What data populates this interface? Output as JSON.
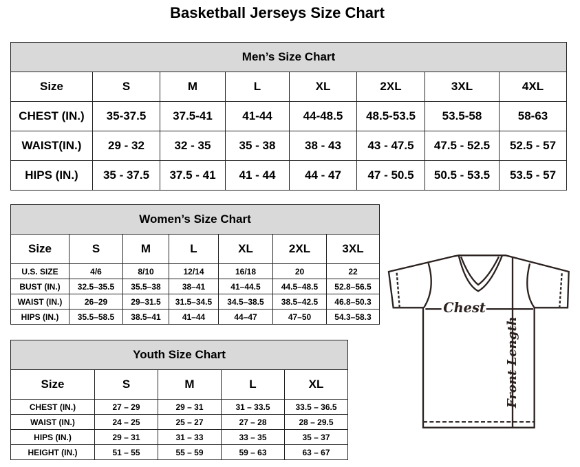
{
  "title": "Basketball Jerseys Size Chart",
  "men": {
    "caption": "Men’s Size Chart",
    "headers": [
      "Size",
      "S",
      "M",
      "L",
      "XL",
      "2XL",
      "3XL",
      "4XL"
    ],
    "rows": [
      [
        "CHEST (IN.)",
        "35-37.5",
        "37.5-41",
        "41-44",
        "44-48.5",
        "48.5-53.5",
        "53.5-58",
        "58-63"
      ],
      [
        "WAIST(IN.)",
        "29 - 32",
        "32 - 35",
        "35 - 38",
        "38 - 43",
        "43 - 47.5",
        "47.5 - 52.5",
        "52.5 - 57"
      ],
      [
        "HIPS (IN.)",
        "35 - 37.5",
        "37.5 - 41",
        "41 - 44",
        "44 - 47",
        "47 - 50.5",
        "50.5 - 53.5",
        "53.5 - 57"
      ]
    ]
  },
  "women": {
    "caption": "Women’s Size Chart",
    "headers": [
      "Size",
      "S",
      "M",
      "L",
      "XL",
      "2XL",
      "3XL"
    ],
    "rows": [
      [
        "U.S. SIZE",
        "4/6",
        "8/10",
        "12/14",
        "16/18",
        "20",
        "22"
      ],
      [
        "BUST (IN.)",
        "32.5–35.5",
        "35.5–38",
        "38–41",
        "41–44.5",
        "44.5–48.5",
        "52.8–56.5"
      ],
      [
        "WAIST (IN.)",
        "26–29",
        "29–31.5",
        "31.5–34.5",
        "34.5–38.5",
        "38.5–42.5",
        "46.8–50.3"
      ],
      [
        "HIPS (IN.)",
        "35.5–58.5",
        "38.5–41",
        "41–44",
        "44–47",
        "47–50",
        "54.3–58.3"
      ]
    ]
  },
  "youth": {
    "caption": "Youth Size Chart",
    "headers": [
      "Size",
      "S",
      "M",
      "L",
      "XL"
    ],
    "rows": [
      [
        "CHEST (IN.)",
        "27 – 29",
        "29 – 31",
        "31 – 33.5",
        "33.5 – 36.5"
      ],
      [
        "WAIST (IN.)",
        "24 – 25",
        "25 – 27",
        "27 – 28",
        "28 – 29.5"
      ],
      [
        "HIPS (IN.)",
        "29 – 31",
        "31 – 33",
        "33 – 35",
        "35 – 37"
      ],
      [
        "HEIGHT (IN.)",
        "51 – 55",
        "55 – 59",
        "59 – 63",
        "63 – 67"
      ]
    ]
  },
  "diagram": {
    "chest_label": "Chest",
    "length_label": "Front Length"
  }
}
